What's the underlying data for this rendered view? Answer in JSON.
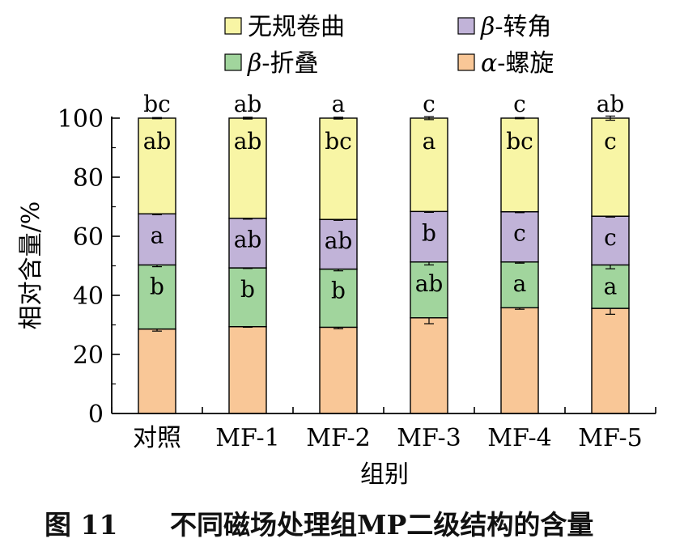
{
  "chart_data": {
    "type": "bar",
    "stacked": true,
    "categories": [
      "对照",
      "MF-1",
      "MF-2",
      "MF-3",
      "MF-4",
      "MF-5"
    ],
    "xlabel": "组别",
    "ylabel": "相对含量/%",
    "ylim": [
      0,
      100
    ],
    "yticks": [
      0,
      20,
      40,
      60,
      80,
      100
    ],
    "grid": false,
    "legend": {
      "placement": "top",
      "entries": [
        {
          "key": "random_coil",
          "greek": "",
          "text": "无规卷曲"
        },
        {
          "key": "beta_turn",
          "greek": "β",
          "text": "-转角"
        },
        {
          "key": "beta_sheet",
          "greek": "β",
          "text": "-折叠"
        },
        {
          "key": "alpha_helix",
          "greek": "α",
          "text": "-螺旋"
        }
      ]
    },
    "series": [
      {
        "key": "alpha_helix",
        "color": "#f9c797",
        "values": [
          28.6,
          29.4,
          29.2,
          32.4,
          35.8,
          35.6
        ],
        "errors": [
          0.7,
          0.2,
          0.5,
          2.0,
          0.5,
          2.0
        ],
        "letters": [
          "",
          "",
          "",
          "",
          "",
          ""
        ]
      },
      {
        "key": "beta_sheet",
        "color": "#a1d59d",
        "values": [
          21.7,
          19.9,
          19.7,
          18.9,
          15.5,
          14.7
        ],
        "errors": [
          0.6,
          0.2,
          0.6,
          1.0,
          0.4,
          1.3
        ],
        "letters": [
          "b",
          "b",
          "b",
          "ab",
          "a",
          "a"
        ]
      },
      {
        "key": "beta_turn",
        "color": "#c1b3d8",
        "values": [
          17.3,
          16.8,
          16.8,
          17.1,
          17.0,
          16.5
        ],
        "errors": [
          0.3,
          0.3,
          0.3,
          0.3,
          0.3,
          0.3
        ],
        "letters": [
          "a",
          "ab",
          "ab",
          "b",
          "c",
          "c"
        ]
      },
      {
        "key": "random_coil",
        "color": "#f8f5a5",
        "values": [
          32.4,
          33.9,
          34.3,
          31.6,
          31.7,
          33.2
        ],
        "errors": [
          0.2,
          0.3,
          0.3,
          0.5,
          0.2,
          0.7
        ],
        "letters": [
          "ab",
          "ab",
          "bc",
          "a",
          "bc",
          "c"
        ]
      }
    ],
    "top_letters": [
      "bc",
      "ab",
      "a",
      "c",
      "c",
      "ab"
    ]
  },
  "caption": {
    "figure_number": "图 11",
    "title": "不同磁场处理组MP二级结构的含量"
  }
}
